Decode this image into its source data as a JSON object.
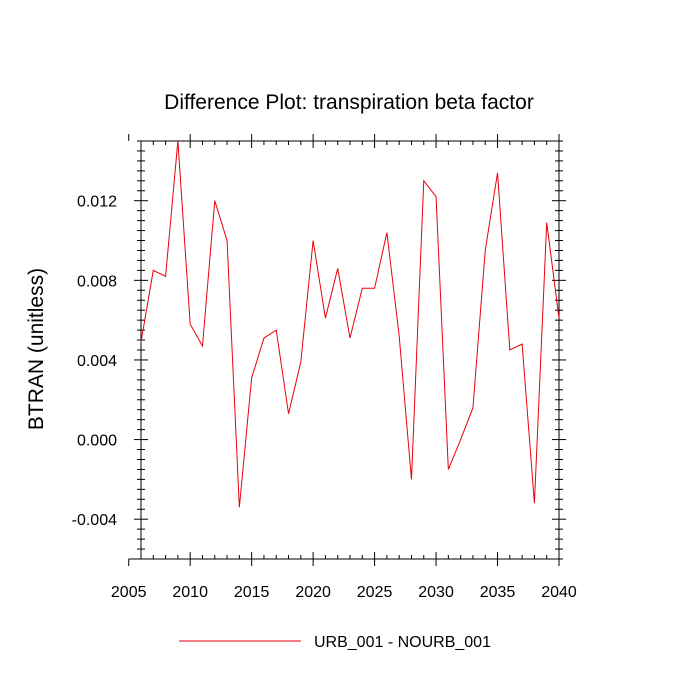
{
  "chart_data": {
    "type": "line",
    "title": "Difference Plot: transpiration beta factor",
    "xlabel": "",
    "ylabel": "BTRAN  (unitless)",
    "xlim": [
      2006,
      2040
    ],
    "ylim": [
      -0.006,
      0.015
    ],
    "xticks": [
      2005,
      2010,
      2015,
      2020,
      2025,
      2030,
      2035,
      2040
    ],
    "xtick_labels": [
      "2005",
      "2010",
      "2015",
      "2020",
      "2025",
      "2030",
      "2035",
      "2040"
    ],
    "yticks": [
      -0.004,
      0.0,
      0.004,
      0.008,
      0.012
    ],
    "ytick_labels": [
      "-0.004",
      "0.000",
      "0.004",
      "0.008",
      "0.012"
    ],
    "grid": false,
    "legend_position": "bottom-center",
    "series": [
      {
        "name": "URB_001 - NOURB_001",
        "color": "#e8000b",
        "x": [
          2006,
          2007,
          2008,
          2009,
          2010,
          2011,
          2012,
          2013,
          2014,
          2015,
          2016,
          2017,
          2018,
          2019,
          2020,
          2021,
          2022,
          2023,
          2024,
          2025,
          2026,
          2027,
          2028,
          2029,
          2030,
          2031,
          2032,
          2033,
          2034,
          2035,
          2036,
          2037,
          2038,
          2039,
          2040
        ],
        "values": [
          0.0049,
          0.0085,
          0.0082,
          0.015,
          0.0058,
          0.0047,
          0.012,
          0.01,
          -0.0034,
          0.0031,
          0.0051,
          0.0055,
          0.0013,
          0.0039,
          0.01,
          0.0061,
          0.0086,
          0.0051,
          0.0076,
          0.0076,
          0.0104,
          0.0052,
          -0.002,
          0.013,
          0.0122,
          -0.0015,
          0.0,
          0.0016,
          0.0095,
          0.0134,
          0.0045,
          0.0048,
          -0.0032,
          0.0109,
          0.0061
        ]
      }
    ]
  }
}
